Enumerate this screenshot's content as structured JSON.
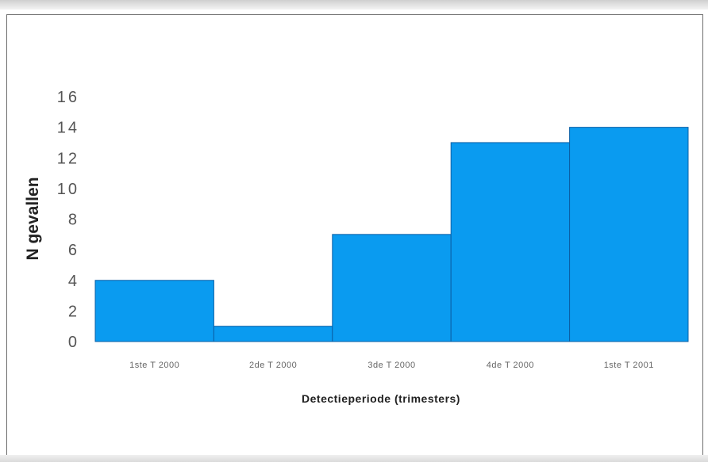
{
  "chart_data": {
    "type": "bar",
    "categories": [
      "1ste T 2000",
      "2de T 2000",
      "3de T 2000",
      "4de T 2000",
      "1ste T 2001"
    ],
    "values": [
      4,
      1,
      7,
      13,
      14
    ],
    "xlabel": "Detectieperiode (trimesters)",
    "ylabel": "N gevallen",
    "ylim": [
      0,
      16
    ],
    "yticks": [
      0,
      2,
      4,
      6,
      8,
      10,
      12,
      14,
      16
    ],
    "grid": false,
    "bar_color": "#0a9bf0",
    "bar_edge_color": "#0b5fa5"
  }
}
